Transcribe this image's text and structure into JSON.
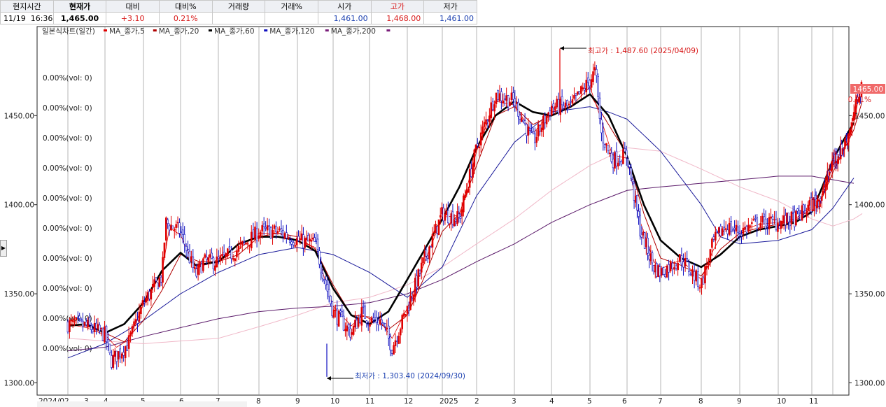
{
  "quote": {
    "headers": [
      "현지시간",
      "현재가",
      "대비",
      "대비%",
      "거래량",
      "거래%",
      "시가",
      "고가",
      "저가"
    ],
    "date": "11/19",
    "time": "16:36",
    "current": "1,465.00",
    "change": "+3.10",
    "change_pct": "0.21%",
    "volume": "",
    "volume_pct": "",
    "open": "1,461.00",
    "high": "1,468.00",
    "low": "1,461.00"
  },
  "legend": {
    "title": "일본식차트(일간)",
    "items": [
      "MA_종가,5",
      "MA_종가,20",
      "MA_종가,60",
      "MA_종가,120",
      "MA_종가,200"
    ]
  },
  "volume_labels": [
    "0.00%(vol: 0)",
    "0.00%(vol: 0)",
    "0.00%(vol: 0)",
    "0.00%(vol: 0)",
    "0.00%(vol: 0)",
    "0.00%(vol: 0)",
    "0.00%(vol: 0)",
    "0.00%(vol: 0)",
    "0.00%(vol: 0)",
    "0.00%(vol: 0)"
  ],
  "annotations": {
    "high": "최고가 : 1,487.60 (2025/04/09)",
    "low": "최저가 : 1,303.40 (2024/09/30)"
  },
  "price_tag": {
    "value": "1465.00",
    "pct": "0.21%"
  },
  "colors": {
    "up": "#e00000",
    "down": "#1010c0",
    "bg": "#ffffff",
    "grid": "#b4b4b4",
    "tag": "#f06a6a"
  },
  "chart_data": {
    "type": "candlestick",
    "title": "일본식차트(일간)",
    "x_tick_labels": [
      "2024/02",
      "3",
      "4",
      "5",
      "6",
      "7",
      "8",
      "9",
      "10",
      "11",
      "12",
      "2025",
      "2",
      "3",
      "4",
      "5",
      "6",
      "7",
      "8",
      "9",
      "10",
      "11"
    ],
    "y_ticks": [
      1300,
      1350,
      1400,
      1450
    ],
    "y_tick_labels": [
      "1300.00",
      "1350.00",
      "1400.00",
      "1450.00"
    ],
    "ylim": [
      1296,
      1496
    ],
    "grid": true,
    "series_anchors": {
      "close": [
        [
          0,
          1333
        ],
        [
          0.5,
          1332
        ],
        [
          1,
          1327
        ],
        [
          1.15,
          1312
        ],
        [
          1.6,
          1322
        ],
        [
          2,
          1345
        ],
        [
          2.5,
          1360
        ],
        [
          2.6,
          1390
        ],
        [
          3,
          1385
        ],
        [
          3.4,
          1360
        ],
        [
          3.6,
          1368
        ],
        [
          4,
          1368
        ],
        [
          4.5,
          1375
        ],
        [
          5,
          1385
        ],
        [
          5.5,
          1385
        ],
        [
          6,
          1380
        ],
        [
          6.5,
          1378
        ],
        [
          7,
          1340
        ],
        [
          7.5,
          1328
        ],
        [
          7.8,
          1340
        ],
        [
          8,
          1335
        ],
        [
          8.3,
          1335
        ],
        [
          8.6,
          1320
        ],
        [
          9,
          1342
        ],
        [
          9.5,
          1370
        ],
        [
          10,
          1395
        ],
        [
          10.5,
          1392
        ],
        [
          11,
          1432
        ],
        [
          11.5,
          1462
        ],
        [
          12,
          1458
        ],
        [
          12.5,
          1435
        ],
        [
          13,
          1455
        ],
        [
          13.5,
          1455
        ],
        [
          14,
          1470
        ],
        [
          14.15,
          1475
        ],
        [
          14.3,
          1440
        ],
        [
          14.6,
          1425
        ],
        [
          15,
          1428
        ],
        [
          15.4,
          1385
        ],
        [
          15.8,
          1365
        ],
        [
          16,
          1362
        ],
        [
          16.5,
          1370
        ],
        [
          17,
          1355
        ],
        [
          17.3,
          1378
        ],
        [
          17.6,
          1388
        ],
        [
          18,
          1385
        ],
        [
          18.5,
          1390
        ],
        [
          19,
          1390
        ],
        [
          19.5,
          1392
        ],
        [
          20,
          1400
        ],
        [
          20.5,
          1405
        ],
        [
          21,
          1425
        ],
        [
          21.5,
          1432
        ],
        [
          22,
          1448
        ],
        [
          22.2,
          1462
        ],
        [
          22.4,
          1465
        ]
      ],
      "ma5": [
        [
          0,
          1333
        ],
        [
          0.5,
          1331
        ],
        [
          1,
          1327
        ],
        [
          1.3,
          1320
        ],
        [
          1.6,
          1324
        ],
        [
          2,
          1344
        ],
        [
          2.5,
          1362
        ],
        [
          2.7,
          1387
        ],
        [
          3,
          1383
        ],
        [
          3.4,
          1364
        ],
        [
          3.6,
          1366
        ],
        [
          4,
          1368
        ],
        [
          4.5,
          1375
        ],
        [
          5,
          1384
        ],
        [
          5.5,
          1384
        ],
        [
          6,
          1380
        ],
        [
          6.5,
          1376
        ],
        [
          7,
          1343
        ],
        [
          7.5,
          1332
        ],
        [
          7.8,
          1338
        ],
        [
          8,
          1336
        ],
        [
          8.3,
          1334
        ],
        [
          8.6,
          1325
        ],
        [
          9,
          1342
        ],
        [
          9.5,
          1368
        ],
        [
          10,
          1393
        ],
        [
          10.5,
          1394
        ],
        [
          11,
          1430
        ],
        [
          11.5,
          1458
        ],
        [
          12,
          1456
        ],
        [
          12.5,
          1440
        ],
        [
          13,
          1452
        ],
        [
          13.5,
          1455
        ],
        [
          14,
          1466
        ],
        [
          14.3,
          1448
        ],
        [
          14.6,
          1428
        ],
        [
          15,
          1426
        ],
        [
          15.4,
          1390
        ],
        [
          15.8,
          1368
        ],
        [
          16,
          1364
        ],
        [
          16.5,
          1369
        ],
        [
          17,
          1358
        ],
        [
          17.3,
          1374
        ],
        [
          17.6,
          1386
        ],
        [
          18,
          1385
        ],
        [
          18.5,
          1389
        ],
        [
          19,
          1390
        ],
        [
          19.5,
          1392
        ],
        [
          20,
          1399
        ],
        [
          20.5,
          1404
        ],
        [
          21,
          1422
        ],
        [
          21.5,
          1431
        ],
        [
          22,
          1446
        ],
        [
          22.2,
          1458
        ],
        [
          22.4,
          1462
        ]
      ],
      "ma20": [
        [
          0,
          1333
        ],
        [
          0.5,
          1332
        ],
        [
          1,
          1328
        ],
        [
          1.5,
          1323
        ],
        [
          2,
          1335
        ],
        [
          2.5,
          1352
        ],
        [
          3,
          1372
        ],
        [
          3.5,
          1368
        ],
        [
          4,
          1368
        ],
        [
          4.5,
          1372
        ],
        [
          5,
          1382
        ],
        [
          5.5,
          1384
        ],
        [
          6,
          1382
        ],
        [
          6.5,
          1375
        ],
        [
          7,
          1355
        ],
        [
          7.5,
          1338
        ],
        [
          8,
          1337
        ],
        [
          8.5,
          1330
        ],
        [
          9,
          1338
        ],
        [
          9.5,
          1360
        ],
        [
          10,
          1385
        ],
        [
          10.5,
          1395
        ],
        [
          11,
          1422
        ],
        [
          11.5,
          1450
        ],
        [
          12,
          1455
        ],
        [
          12.5,
          1445
        ],
        [
          13,
          1450
        ],
        [
          13.5,
          1455
        ],
        [
          14,
          1462
        ],
        [
          14.5,
          1445
        ],
        [
          15,
          1428
        ],
        [
          15.5,
          1395
        ],
        [
          16,
          1370
        ],
        [
          16.5,
          1366
        ],
        [
          17,
          1360
        ],
        [
          17.5,
          1375
        ],
        [
          18,
          1384
        ],
        [
          18.5,
          1387
        ],
        [
          19,
          1389
        ],
        [
          19.5,
          1391
        ],
        [
          20,
          1398
        ],
        [
          20.5,
          1404
        ],
        [
          21,
          1418
        ],
        [
          21.5,
          1430
        ],
        [
          22,
          1442
        ],
        [
          22.4,
          1458
        ]
      ],
      "ma60": [
        [
          0,
          1332
        ],
        [
          0.5,
          1333
        ],
        [
          1,
          1328
        ],
        [
          1.5,
          1333
        ],
        [
          2,
          1345
        ],
        [
          2.5,
          1363
        ],
        [
          3,
          1373
        ],
        [
          3.4,
          1366
        ],
        [
          4,
          1368
        ],
        [
          4.5,
          1378
        ],
        [
          5,
          1382
        ],
        [
          5.5,
          1382
        ],
        [
          6,
          1380
        ],
        [
          6.5,
          1374
        ],
        [
          7,
          1353
        ],
        [
          7.5,
          1338
        ],
        [
          8,
          1333
        ],
        [
          8.5,
          1340
        ],
        [
          9,
          1358
        ],
        [
          9.5,
          1375
        ],
        [
          10,
          1392
        ],
        [
          10.5,
          1410
        ],
        [
          11,
          1432
        ],
        [
          11.5,
          1450
        ],
        [
          12,
          1458
        ],
        [
          12.5,
          1452
        ],
        [
          13,
          1450
        ],
        [
          13.5,
          1455
        ],
        [
          14,
          1462
        ],
        [
          14.5,
          1450
        ],
        [
          15,
          1427
        ],
        [
          15.5,
          1400
        ],
        [
          16,
          1380
        ],
        [
          16.5,
          1370
        ],
        [
          17,
          1365
        ],
        [
          17.5,
          1372
        ],
        [
          18,
          1382
        ],
        [
          18.5,
          1386
        ],
        [
          19,
          1388
        ],
        [
          19.5,
          1390
        ],
        [
          20,
          1396
        ],
        [
          20.5,
          1410
        ],
        [
          21,
          1425
        ],
        [
          21.5,
          1436
        ],
        [
          22,
          1446
        ]
      ],
      "ma120": [
        [
          0,
          1314
        ],
        [
          1,
          1322
        ],
        [
          2,
          1335
        ],
        [
          3,
          1350
        ],
        [
          4,
          1362
        ],
        [
          5,
          1372
        ],
        [
          6,
          1376
        ],
        [
          7,
          1372
        ],
        [
          8,
          1362
        ],
        [
          9,
          1348
        ],
        [
          10,
          1365
        ],
        [
          11,
          1405
        ],
        [
          12,
          1435
        ],
        [
          13,
          1452
        ],
        [
          14,
          1455
        ],
        [
          14.5,
          1452
        ],
        [
          15,
          1448
        ],
        [
          16,
          1430
        ],
        [
          17,
          1400
        ],
        [
          17.5,
          1382
        ],
        [
          18,
          1378
        ],
        [
          19,
          1380
        ],
        [
          20,
          1386
        ],
        [
          21,
          1398
        ],
        [
          22,
          1415
        ]
      ],
      "ma200": [
        [
          0,
          1318
        ],
        [
          1,
          1320
        ],
        [
          2,
          1326
        ],
        [
          3,
          1331
        ],
        [
          4,
          1336
        ],
        [
          5,
          1340
        ],
        [
          6,
          1342
        ],
        [
          7,
          1343
        ],
        [
          8,
          1345
        ],
        [
          9,
          1350
        ],
        [
          10,
          1358
        ],
        [
          11,
          1368
        ],
        [
          12,
          1378
        ],
        [
          13,
          1390
        ],
        [
          14,
          1400
        ],
        [
          15,
          1408
        ],
        [
          16,
          1410
        ],
        [
          17,
          1412
        ],
        [
          18,
          1414
        ],
        [
          19,
          1416
        ],
        [
          20,
          1416
        ],
        [
          21,
          1414
        ],
        [
          22,
          1412
        ]
      ],
      "ma_pink": [
        [
          0,
          1325
        ],
        [
          2,
          1322
        ],
        [
          4,
          1325
        ],
        [
          6,
          1338
        ],
        [
          7,
          1345
        ],
        [
          8,
          1348
        ],
        [
          9,
          1355
        ],
        [
          10,
          1365
        ],
        [
          11,
          1378
        ],
        [
          12,
          1392
        ],
        [
          13,
          1408
        ],
        [
          14,
          1422
        ],
        [
          15,
          1432
        ],
        [
          16,
          1430
        ],
        [
          17,
          1420
        ],
        [
          18,
          1410
        ],
        [
          19,
          1402
        ],
        [
          20,
          1392
        ],
        [
          21,
          1388
        ],
        [
          22,
          1392
        ],
        [
          22.4,
          1395
        ]
      ]
    }
  }
}
